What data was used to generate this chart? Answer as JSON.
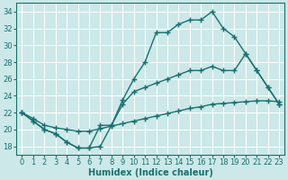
{
  "bg_color": "#cce8e8",
  "grid_color": "#ffffff",
  "line_color": "#1a7070",
  "line_width": 1.0,
  "marker": "+",
  "marker_size": 4,
  "marker_ew": 1.0,
  "xlabel": "Humidex (Indice chaleur)",
  "xlabel_fontsize": 7,
  "tick_fontsize": 6,
  "ylim": [
    17,
    35
  ],
  "xlim": [
    -0.5,
    23.5
  ],
  "yticks": [
    18,
    20,
    22,
    24,
    26,
    28,
    30,
    32,
    34
  ],
  "xticks": [
    0,
    1,
    2,
    3,
    4,
    5,
    6,
    7,
    8,
    9,
    10,
    11,
    12,
    13,
    14,
    15,
    16,
    17,
    18,
    19,
    20,
    21,
    22,
    23
  ],
  "line1_x": [
    0,
    1,
    2,
    3,
    4,
    5,
    6,
    7,
    8,
    9,
    10,
    11,
    12,
    13,
    14,
    15,
    16,
    17,
    18,
    19,
    20,
    21,
    22,
    23
  ],
  "line1_y": [
    22,
    21,
    20,
    19.5,
    18.5,
    17.8,
    17.8,
    18,
    20.5,
    23.5,
    26,
    28,
    31.5,
    31.5,
    32.5,
    33,
    33,
    34,
    32,
    31,
    29,
    27,
    25,
    23
  ],
  "line2_x": [
    0,
    1,
    2,
    3,
    4,
    5,
    6,
    7,
    8,
    9,
    10,
    11,
    12,
    13,
    14,
    15,
    16,
    17,
    18,
    19,
    20,
    21,
    22,
    23
  ],
  "line2_y": [
    22,
    21,
    20,
    19.5,
    18.5,
    17.8,
    17.8,
    20.5,
    20.5,
    23,
    24.5,
    25,
    25.5,
    26,
    26.5,
    27,
    27,
    27.5,
    27,
    27,
    29,
    27,
    25,
    23
  ],
  "line3_x": [
    0,
    1,
    2,
    3,
    4,
    5,
    6,
    7,
    8,
    9,
    10,
    11,
    12,
    13,
    14,
    15,
    16,
    17,
    18,
    19,
    20,
    21,
    22,
    23
  ],
  "line3_y": [
    22,
    21.3,
    20.5,
    20.2,
    20.0,
    19.8,
    19.8,
    20.1,
    20.4,
    20.7,
    21.0,
    21.3,
    21.6,
    21.9,
    22.2,
    22.5,
    22.7,
    23.0,
    23.1,
    23.2,
    23.3,
    23.4,
    23.4,
    23.3
  ]
}
